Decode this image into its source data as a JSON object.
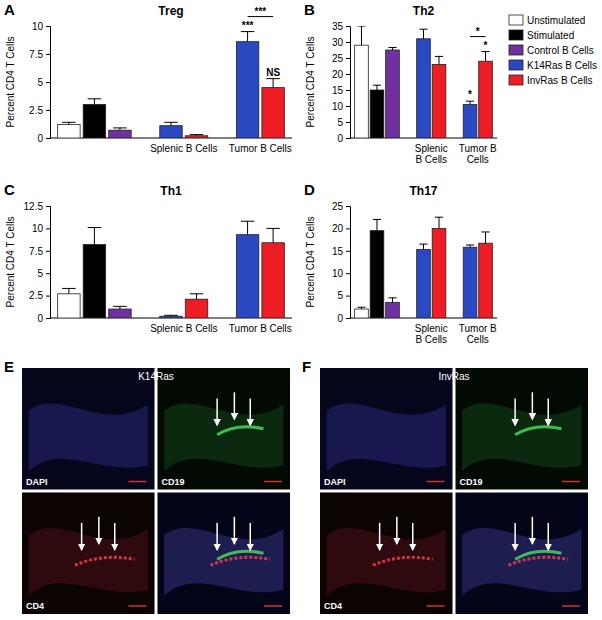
{
  "chart_data": [
    {
      "type": "bar",
      "panel": "A",
      "title": "Treg",
      "y_label": "Percent CD4 T Cells",
      "categories": [
        null,
        null,
        null,
        "Splenic B Cells",
        "Tumor B Cells"
      ],
      "ylim": [
        0,
        10
      ],
      "yticks": [
        0,
        2.5,
        5,
        7.5,
        10
      ],
      "series": [
        {
          "color": "#ffffff",
          "values": [
            1.2,
            null,
            null,
            null,
            null
          ],
          "errors": [
            0.2,
            null,
            null,
            null,
            null
          ]
        },
        {
          "color": "#000000",
          "values": [
            null,
            3.0,
            null,
            null,
            null
          ],
          "errors": [
            null,
            0.5,
            null,
            null,
            null
          ]
        },
        {
          "color": "#7030a0",
          "values": [
            null,
            null,
            0.7,
            null,
            null
          ],
          "errors": [
            null,
            null,
            0.2,
            null,
            null
          ]
        },
        {
          "color": "#2a48c2",
          "values": [
            null,
            null,
            null,
            1.1,
            8.6
          ],
          "errors": [
            null,
            null,
            null,
            0.3,
            0.9
          ],
          "annotations": [
            null,
            null,
            null,
            null,
            "***"
          ]
        },
        {
          "color": "#ee1c24",
          "values": [
            null,
            null,
            null,
            0.2,
            4.5
          ],
          "errors": [
            null,
            null,
            null,
            0.1,
            0.8
          ],
          "annotations": [
            null,
            null,
            null,
            null,
            "NS"
          ]
        }
      ],
      "bracket": {
        "category": "Tumor B Cells",
        "text": "***"
      }
    },
    {
      "type": "bar",
      "panel": "B",
      "title": "Th2",
      "y_label": "Percent CD4 T Cells",
      "categories": [
        null,
        null,
        null,
        "Splenic B Cells",
        "Tumor B Cells"
      ],
      "ylim": [
        0,
        35
      ],
      "yticks": [
        0,
        5,
        10,
        15,
        20,
        25,
        30,
        35
      ],
      "legend": "right",
      "series": [
        {
          "color": "#ffffff",
          "values": [
            29,
            null,
            null,
            null,
            null
          ],
          "errors": [
            6,
            null,
            null,
            null,
            null
          ]
        },
        {
          "color": "#000000",
          "values": [
            null,
            15,
            null,
            null,
            null
          ],
          "errors": [
            null,
            1.5,
            null,
            null,
            null
          ]
        },
        {
          "color": "#7030a0",
          "values": [
            null,
            null,
            27.5,
            null,
            null
          ],
          "errors": [
            null,
            null,
            0.8,
            null,
            null
          ]
        },
        {
          "color": "#2a48c2",
          "values": [
            null,
            null,
            null,
            31,
            10.5
          ],
          "errors": [
            null,
            null,
            null,
            3,
            1
          ],
          "annotations": [
            null,
            null,
            null,
            null,
            "*"
          ]
        },
        {
          "color": "#ee1c24",
          "values": [
            null,
            null,
            null,
            23,
            24
          ],
          "errors": [
            null,
            null,
            null,
            2.5,
            3
          ],
          "annotations": [
            null,
            null,
            null,
            null,
            "*"
          ]
        }
      ],
      "bracket": {
        "category": "Tumor B Cells",
        "text": "*"
      }
    },
    {
      "type": "bar",
      "panel": "C",
      "title": "Th1",
      "y_label": "Percent CD4 T Cells",
      "categories": [
        null,
        null,
        null,
        "Splenic B Cells",
        "Tumor B Cells"
      ],
      "ylim": [
        0,
        12.5
      ],
      "yticks": [
        0,
        2.5,
        5,
        7.5,
        10,
        12.5
      ],
      "series": [
        {
          "color": "#ffffff",
          "values": [
            2.7,
            null,
            null,
            null,
            null
          ],
          "errors": [
            0.6,
            null,
            null,
            null,
            null
          ]
        },
        {
          "color": "#000000",
          "values": [
            null,
            8.2,
            null,
            null,
            null
          ],
          "errors": [
            null,
            1.9,
            null,
            null,
            null
          ]
        },
        {
          "color": "#7030a0",
          "values": [
            null,
            null,
            1.0,
            null,
            null
          ],
          "errors": [
            null,
            null,
            0.3,
            null,
            null
          ]
        },
        {
          "color": "#2a48c2",
          "values": [
            null,
            null,
            null,
            0.2,
            9.3
          ],
          "errors": [
            null,
            null,
            null,
            0.1,
            1.5
          ]
        },
        {
          "color": "#ee1c24",
          "values": [
            null,
            null,
            null,
            2.1,
            8.4
          ],
          "errors": [
            null,
            null,
            null,
            0.6,
            1.6
          ]
        }
      ]
    },
    {
      "type": "bar",
      "panel": "D",
      "title": "Th17",
      "y_label": "Percent CD4 T Cells",
      "categories": [
        null,
        null,
        null,
        "Splenic B Cells",
        "Tumor B Cells"
      ],
      "ylim": [
        0,
        25
      ],
      "yticks": [
        0,
        5,
        10,
        15,
        20,
        25
      ],
      "series": [
        {
          "color": "#ffffff",
          "values": [
            2.0,
            null,
            null,
            null,
            null
          ],
          "errors": [
            0.4,
            null,
            null,
            null,
            null
          ]
        },
        {
          "color": "#000000",
          "values": [
            null,
            19.5,
            null,
            null,
            null
          ],
          "errors": [
            null,
            2.5,
            null,
            null,
            null
          ]
        },
        {
          "color": "#7030a0",
          "values": [
            null,
            null,
            3.5,
            null,
            null
          ],
          "errors": [
            null,
            null,
            1.0,
            null,
            null
          ]
        },
        {
          "color": "#2a48c2",
          "values": [
            null,
            null,
            null,
            15.3,
            15.8
          ],
          "errors": [
            null,
            null,
            null,
            1.2,
            0.5
          ]
        },
        {
          "color": "#ee1c24",
          "values": [
            null,
            null,
            null,
            20,
            16.7
          ],
          "errors": [
            null,
            null,
            null,
            2.5,
            2.5
          ]
        }
      ]
    }
  ],
  "legend_entries": [
    {
      "name": "Unstimulated",
      "color": "#ffffff"
    },
    {
      "name": "Stimulated",
      "color": "#000000"
    },
    {
      "name": "Control B Cells",
      "color": "#7030a0"
    },
    {
      "name": "K14Ras B Cells",
      "color": "#2a48c2"
    },
    {
      "name": "InvRas B Cells",
      "color": "#ee1c24"
    }
  ],
  "images": [
    {
      "panel": "E",
      "title": "K14Ras",
      "channels": [
        "DAPI",
        "CD19",
        "CD4"
      ]
    },
    {
      "panel": "F",
      "title": "InvRas",
      "channels": [
        "DAPI",
        "CD19",
        "CD4"
      ]
    }
  ]
}
